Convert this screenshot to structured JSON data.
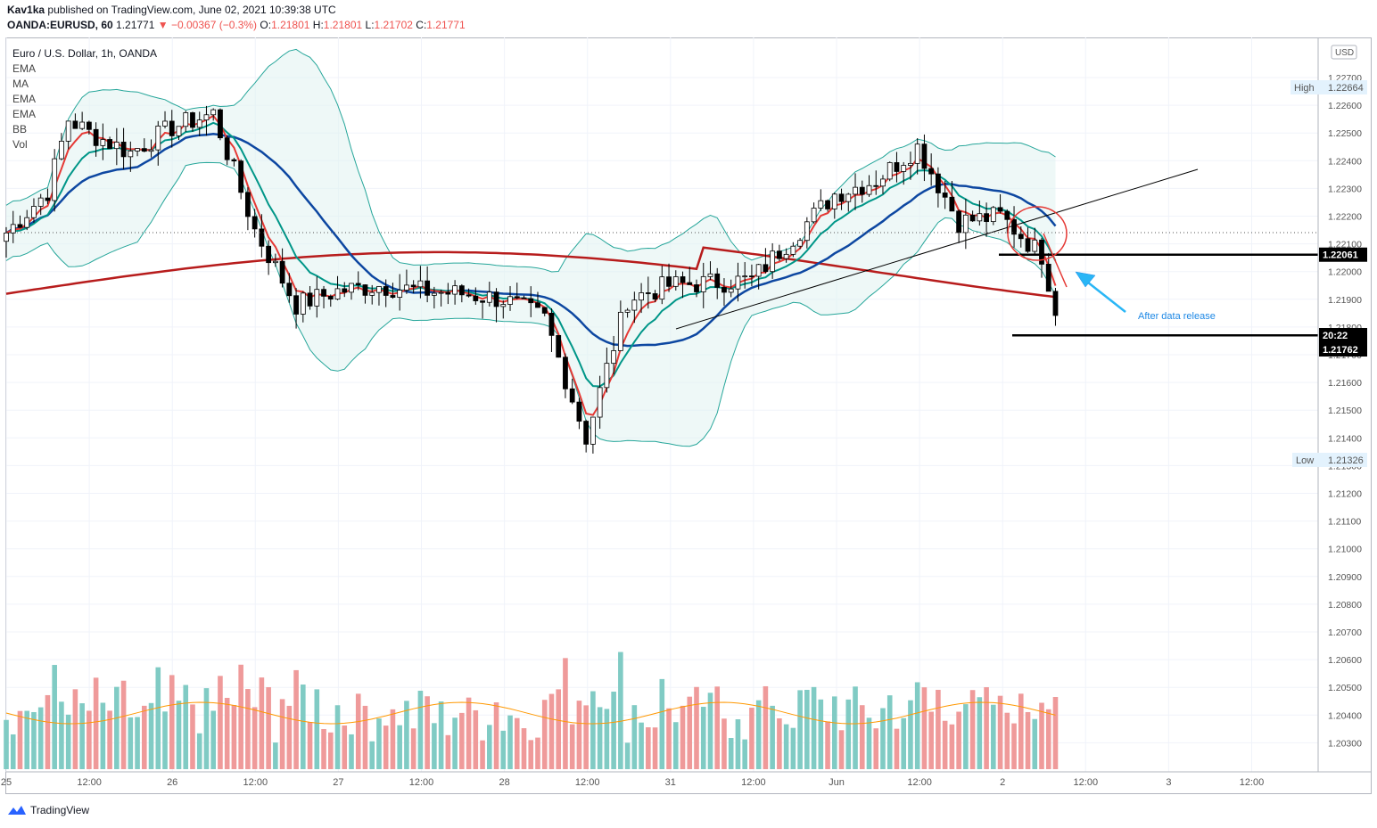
{
  "header": {
    "author": "Kav1ka",
    "published": "published on TradingView.com, June 02, 2021 10:39:38 UTC",
    "symbol": "OANDA:EURUSD, 60",
    "last": "1.21771",
    "change": "▼ −0.00367 (−0.3%)",
    "o_label": "O:",
    "o": "1.21801",
    "h_label": "H:",
    "h": "1.21801",
    "l_label": "L:",
    "l": "1.21702",
    "c_label": "C:",
    "c": "1.21771"
  },
  "legend": {
    "title": "Euro / U.S. Dollar, 1h, OANDA",
    "items": [
      "EMA",
      "MA",
      "EMA",
      "EMA",
      "BB",
      "Vol"
    ]
  },
  "price_axis": {
    "currency": "USD",
    "ticks": [
      "1.22700",
      "1.22600",
      "1.22500",
      "1.22400",
      "1.22300",
      "1.22200",
      "1.22100",
      "1.22000",
      "1.21900",
      "1.21800",
      "1.21700",
      "1.21600",
      "1.21500",
      "1.21400",
      "1.21300",
      "1.21200",
      "1.21100",
      "1.21000",
      "1.20900",
      "1.20800",
      "1.20700",
      "1.20600",
      "1.20500",
      "1.20400",
      "1.20300"
    ],
    "high_label": "High",
    "high_value": "1.22664",
    "low_label": "Low",
    "low_value": "1.21326",
    "level_value": "1.22061",
    "countdown": "20:22",
    "last_price": "1.21762"
  },
  "time_axis": {
    "ticks": [
      "25",
      "12:00",
      "26",
      "12:00",
      "27",
      "12:00",
      "28",
      "12:00",
      "31",
      "12:00",
      "Jun",
      "12:00",
      "2",
      "12:00",
      "3",
      "12:00"
    ]
  },
  "annotation": {
    "text": "After data release"
  },
  "brand": {
    "name": "TradingView"
  },
  "colors": {
    "up": "#ffffff",
    "down": "#000000",
    "ema_fast": "#e53935",
    "ema_mid": "#009688",
    "ma_slow": "#0d47a1",
    "ema_200": "#b71c1c",
    "bb_fill": "#e0f2f1",
    "bb_line": "#26a69a",
    "vol_up": "#80cbc4",
    "vol_down": "#ef9a9a",
    "vol_ma": "#ff9800",
    "annotation": "#29b6f6"
  },
  "chart_data": {
    "type": "candlestick",
    "title": "Euro / U.S. Dollar, 1h, OANDA",
    "x_range": [
      "May 25",
      "Jun 3 12:00"
    ],
    "y_range": [
      1.2024,
      1.2284
    ],
    "high": 1.22664,
    "low": 1.21326,
    "last": 1.21762,
    "horizontal_levels": [
      1.22061,
      1.2177
    ],
    "series": [
      {
        "name": "Price (approx. close path)",
        "points": [
          [
            "25 00:00",
            1.2214
          ],
          [
            "25 06:00",
            1.2229
          ],
          [
            "25 09:00",
            1.2255
          ],
          [
            "25 12:00",
            1.225
          ],
          [
            "25 18:00",
            1.2243
          ],
          [
            "26 00:00",
            1.2252
          ],
          [
            "26 06:00",
            1.2257
          ],
          [
            "26 12:00",
            1.2215
          ],
          [
            "26 18:00",
            1.2188
          ],
          [
            "27 00:00",
            1.2193
          ],
          [
            "27 06:00",
            1.2195
          ],
          [
            "27 12:00",
            1.2193
          ],
          [
            "27 18:00",
            1.2192
          ],
          [
            "28 00:00",
            1.219
          ],
          [
            "28 06:00",
            1.2183
          ],
          [
            "28 12:00",
            1.214
          ],
          [
            "28 18:00",
            1.219
          ],
          [
            "31 00:00",
            1.2195
          ],
          [
            "31 12:00",
            1.2197
          ],
          [
            "Jun 1 00:00",
            1.2228
          ],
          [
            "Jun 1 06:00",
            1.2233
          ],
          [
            "Jun 1 12:00",
            1.2245
          ],
          [
            "Jun 1 18:00",
            1.2218
          ],
          [
            "Jun 2 00:00",
            1.222
          ],
          [
            "Jun 2 06:00",
            1.2206
          ],
          [
            "Jun 2 09:00",
            1.2177
          ]
        ]
      }
    ]
  }
}
